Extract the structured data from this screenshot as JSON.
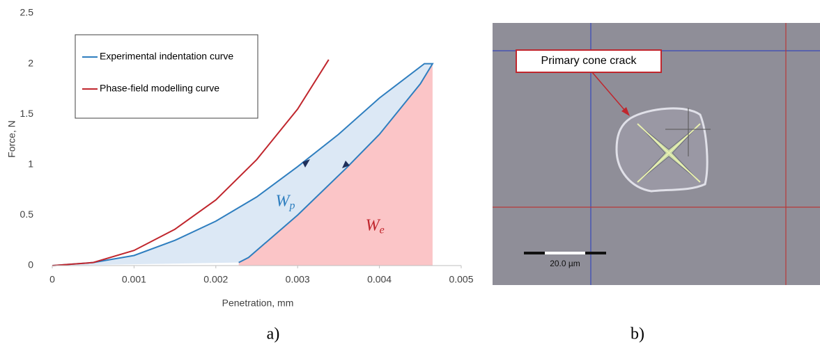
{
  "chart_data": {
    "type": "line",
    "xlabel": "Penetration, mm",
    "ylabel": "Force, N",
    "xlim": [
      0,
      0.005
    ],
    "xticks": [
      0,
      0.001,
      0.002,
      0.003,
      0.004,
      0.005
    ],
    "ylim": [
      0,
      2.5
    ],
    "yticks": [
      0,
      0.5,
      1,
      1.5,
      2,
      2.5
    ],
    "grid": false,
    "legend": "upper left",
    "series": [
      {
        "name": "Experimental indentation curve",
        "color": "#2e7ebf",
        "fill_colors": [
          "#dce8f5",
          "#fbc5c7"
        ],
        "x": [
          0,
          0.0005,
          0.001,
          0.0015,
          0.002,
          0.0025,
          0.003,
          0.0035,
          0.004,
          0.00455,
          0.00465,
          0.0045,
          0.004,
          0.0036,
          0.003,
          0.0026,
          0.0024,
          0.00228
        ],
        "values": [
          0,
          0.03,
          0.1,
          0.25,
          0.44,
          0.68,
          0.98,
          1.3,
          1.66,
          2.0,
          2.0,
          1.8,
          1.3,
          0.97,
          0.5,
          0.22,
          0.08,
          0.03
        ]
      },
      {
        "name": "Phase-field modelling curve",
        "color": "#c0262d",
        "x": [
          0,
          0.0005,
          0.001,
          0.0015,
          0.002,
          0.0025,
          0.003,
          0.00338
        ],
        "values": [
          0,
          0.03,
          0.15,
          0.36,
          0.65,
          1.05,
          1.55,
          2.04
        ]
      }
    ],
    "annotations": [
      {
        "text": "W",
        "subscript": "p",
        "x": 0.00273,
        "y": 0.63,
        "color": "#2e7ebf"
      },
      {
        "text": "W",
        "subscript": "e",
        "x": 0.00383,
        "y": 0.39,
        "color": "#c0262d"
      }
    ]
  },
  "image": {
    "callout": "Primary cone crack",
    "scale_bar": "20.0 µm"
  },
  "captions": [
    "a)",
    "b)"
  ]
}
